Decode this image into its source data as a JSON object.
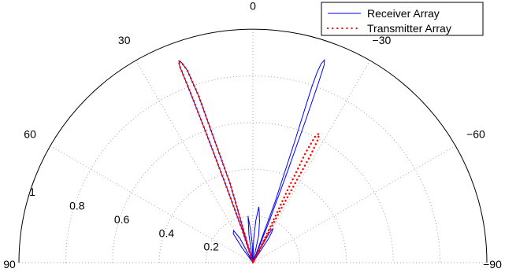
{
  "chart_data": {
    "type": "polar",
    "subtype": "half-plane polar radiation pattern",
    "theta_range_deg": [
      -90,
      90
    ],
    "theta_direction": "counterclockwise from top, positive to the left",
    "r_range": [
      0,
      1
    ],
    "angle_tick_labels": [
      "90",
      "60",
      "30",
      "0",
      "−30",
      "−60",
      "−90"
    ],
    "radius_tick_labels": [
      "0.2",
      "0.4",
      "0.6",
      "0.8",
      "1"
    ],
    "grid": true,
    "legend_position": "top-right",
    "series": [
      {
        "name": "Receiver Array",
        "color": "#0000ff",
        "style": "solid",
        "points": [
          [
            -36,
            0.0
          ],
          [
            -33,
            0.12
          ],
          [
            -32,
            0.15
          ],
          [
            -30.5,
            0.17
          ],
          [
            -29,
            0.15
          ],
          [
            -27,
            0.05
          ],
          [
            -25,
            0.0
          ],
          [
            -22,
            0.0
          ],
          [
            -20,
            0.28
          ],
          [
            -19,
            0.55
          ],
          [
            -18.6,
            0.72
          ],
          [
            -18.5,
            0.8
          ],
          [
            -18.6,
            0.86
          ],
          [
            -18.9,
            0.9
          ],
          [
            -19.4,
            0.92
          ],
          [
            -19.8,
            0.9
          ],
          [
            -20,
            0.82
          ],
          [
            -20.3,
            0.65
          ],
          [
            -20.8,
            0.4
          ],
          [
            -21.5,
            0.18
          ],
          [
            -23,
            0.0
          ],
          [
            -15,
            0.0
          ],
          [
            -12,
            0.12
          ],
          [
            -9,
            0.18
          ],
          [
            -7,
            0.22
          ],
          [
            -6,
            0.24
          ],
          [
            -4,
            0.18
          ],
          [
            -2,
            0.1
          ],
          [
            0,
            0.0
          ],
          [
            2,
            0.08
          ],
          [
            4,
            0.14
          ],
          [
            6,
            0.2
          ],
          [
            8,
            0.12
          ],
          [
            10,
            0.0
          ],
          [
            14,
            0.0
          ],
          [
            16,
            0.35
          ],
          [
            18,
            0.75
          ],
          [
            18.8,
            0.87
          ],
          [
            19.6,
            0.91
          ],
          [
            20.1,
            0.92
          ],
          [
            20.4,
            0.9
          ],
          [
            20.2,
            0.8
          ],
          [
            19.8,
            0.6
          ],
          [
            19.2,
            0.35
          ],
          [
            18,
            0.15
          ],
          [
            17,
            0.0
          ],
          [
            25,
            0.0
          ],
          [
            28,
            0.12
          ],
          [
            31,
            0.16
          ],
          [
            34,
            0.15
          ],
          [
            36,
            0.08
          ],
          [
            38,
            0.0
          ]
        ]
      },
      {
        "name": "Transmitter Array",
        "color": "#ff0000",
        "style": "dotted",
        "points": [
          [
            -27,
            0.0
          ],
          [
            -26,
            0.15
          ],
          [
            -25.5,
            0.35
          ],
          [
            -25.6,
            0.52
          ],
          [
            -26.2,
            0.6
          ],
          [
            -27.0,
            0.62
          ],
          [
            -27.8,
            0.6
          ],
          [
            -28.2,
            0.52
          ],
          [
            -28.0,
            0.4
          ],
          [
            -27.5,
            0.22
          ],
          [
            -27,
            0.0
          ],
          [
            14,
            0.0
          ],
          [
            16,
            0.35
          ],
          [
            18,
            0.75
          ],
          [
            18.8,
            0.87
          ],
          [
            19.6,
            0.91
          ],
          [
            20.1,
            0.92
          ],
          [
            20.4,
            0.9
          ],
          [
            20.2,
            0.8
          ],
          [
            19.8,
            0.6
          ],
          [
            19.2,
            0.35
          ],
          [
            18,
            0.15
          ],
          [
            17,
            0.0
          ]
        ]
      }
    ]
  }
}
